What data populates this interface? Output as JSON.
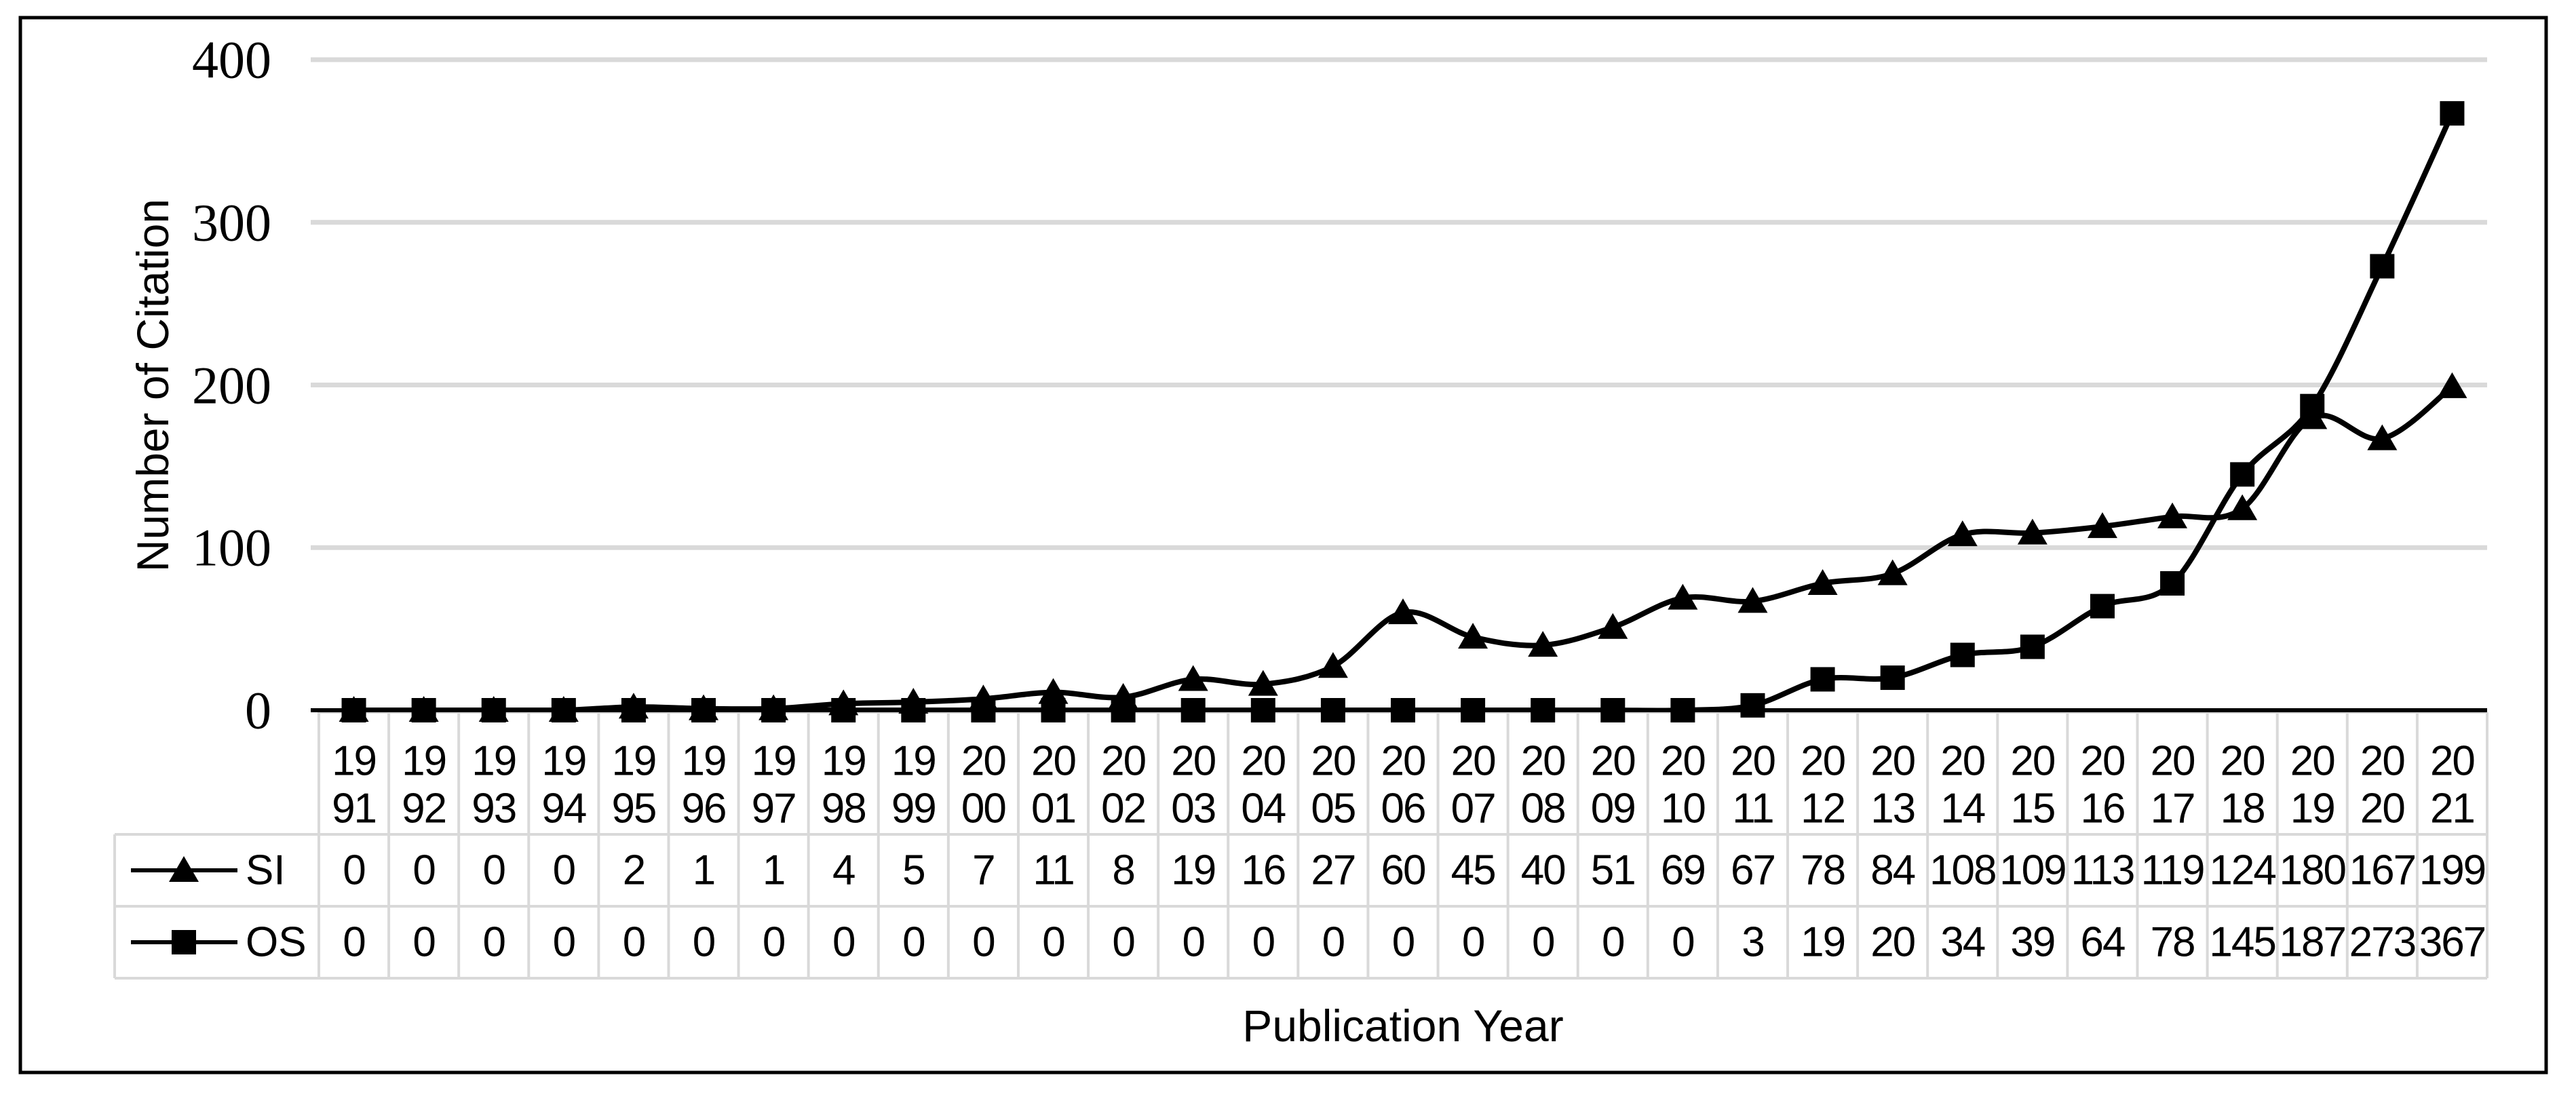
{
  "figure": {
    "background_color": "#ffffff",
    "border_color": "#000000"
  },
  "chart_data": {
    "type": "line",
    "title": "",
    "xlabel": "Publication Year",
    "ylabel": "Number of Citation",
    "ylim": [
      0,
      400
    ],
    "y_ticks": [
      0,
      100,
      200,
      300,
      400
    ],
    "grid": "horizontal",
    "gridline_color": "#d9d9d9",
    "table_border_color": "#d9d9d9",
    "series_color": "#000000",
    "smoothed": true,
    "legend_position": "table-left",
    "categories": [
      "1991",
      "1992",
      "1993",
      "1994",
      "1995",
      "1996",
      "1997",
      "1998",
      "1999",
      "2000",
      "2001",
      "2002",
      "2003",
      "2004",
      "2005",
      "2006",
      "2007",
      "2008",
      "2009",
      "2010",
      "2011",
      "2012",
      "2013",
      "2014",
      "2015",
      "2016",
      "2017",
      "2018",
      "2019",
      "2020",
      "2021"
    ],
    "series": [
      {
        "name": "SI",
        "marker": "triangle",
        "values": [
          0,
          0,
          0,
          0,
          2,
          1,
          1,
          4,
          5,
          7,
          11,
          8,
          19,
          16,
          27,
          60,
          45,
          40,
          51,
          69,
          67,
          78,
          84,
          108,
          109,
          113,
          119,
          124,
          180,
          167,
          199
        ]
      },
      {
        "name": "OS",
        "marker": "square",
        "values": [
          0,
          0,
          0,
          0,
          0,
          0,
          0,
          0,
          0,
          0,
          0,
          0,
          0,
          0,
          0,
          0,
          0,
          0,
          0,
          0,
          3,
          19,
          20,
          34,
          39,
          64,
          78,
          145,
          187,
          273,
          367
        ]
      }
    ]
  }
}
